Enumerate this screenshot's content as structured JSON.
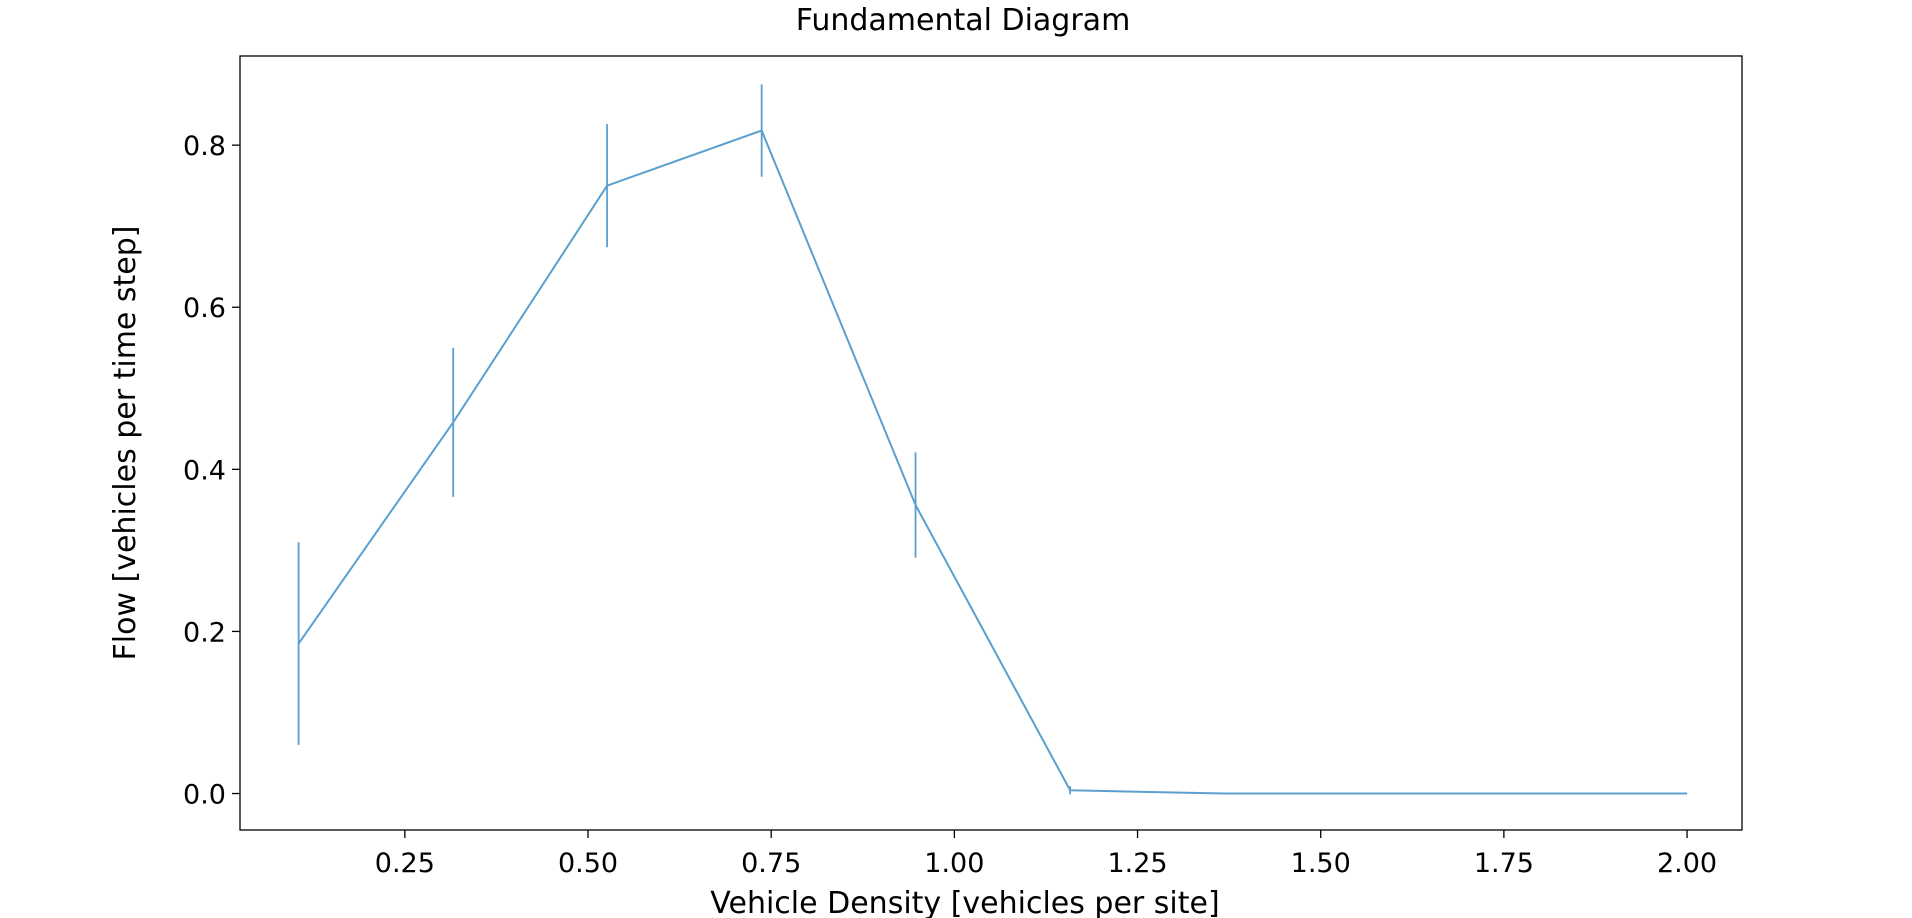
{
  "chart_data": {
    "type": "line",
    "title": "Fundamental Diagram",
    "xlabel": "Vehicle Density [vehicles per site]",
    "ylabel": "Flow [vehicles per time step]",
    "xlim": [
      0.025,
      2.075
    ],
    "ylim": [
      -0.045,
      0.91
    ],
    "xticks": [
      0.25,
      0.5,
      0.75,
      1.0,
      1.25,
      1.5,
      1.75,
      2.0
    ],
    "xtick_labels": [
      "0.25",
      "0.50",
      "0.75",
      "1.00",
      "1.25",
      "1.50",
      "1.75",
      "2.00"
    ],
    "yticks": [
      0.0,
      0.2,
      0.4,
      0.6,
      0.8
    ],
    "ytick_labels": [
      "0.0",
      "0.2",
      "0.4",
      "0.6",
      "0.8"
    ],
    "grid": false,
    "color": "#5b9fcf",
    "series": [
      {
        "x": [
          0.105,
          0.316,
          0.526,
          0.737,
          0.947,
          1.158,
          1.368,
          1.579,
          1.789,
          2.0
        ],
        "y": [
          0.185,
          0.458,
          0.75,
          0.818,
          0.356,
          0.004,
          0.0,
          0.0,
          0.0,
          0.0
        ],
        "yerr": [
          0.125,
          0.092,
          0.076,
          0.057,
          0.065,
          0.005,
          0.0,
          0.0,
          0.0,
          0.0
        ]
      }
    ]
  }
}
